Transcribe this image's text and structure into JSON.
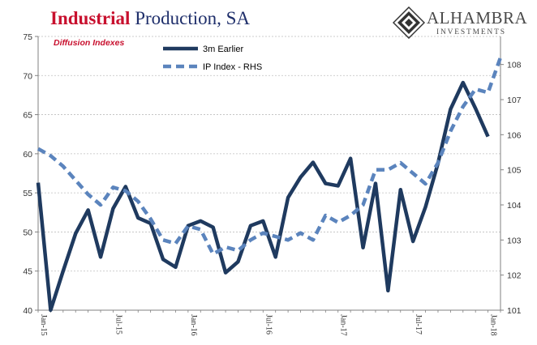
{
  "title": {
    "part1": "Industrial",
    "part2": " Production, SA"
  },
  "subtitle": "Diffusion Indexes",
  "logo": {
    "name": "ALHAMBRA",
    "sub": "INVESTMENTS",
    "icon": "alhambra-diamond-logo"
  },
  "colors": {
    "solid": "#1f3a5f",
    "dashed": "#5b84bd",
    "grid": "#bfbfbf",
    "title_red": "#c8102e",
    "title_navy": "#1f2f6b"
  },
  "chart_data": {
    "type": "line",
    "grid": true,
    "legend_placement": "top-center",
    "y_left": {
      "min": 40,
      "max": 75,
      "ticks": [
        "40",
        "45",
        "50",
        "55",
        "60",
        "65",
        "70",
        "75"
      ]
    },
    "y_right": {
      "min": 101,
      "max": 108.8,
      "ticks": [
        "101",
        "102",
        "103",
        "104",
        "105",
        "106",
        "107",
        "108"
      ]
    },
    "x_ticks": [
      {
        "label": "Jan-15",
        "index": 0
      },
      {
        "label": "Jul-15",
        "index": 6
      },
      {
        "label": "Jan-16",
        "index": 12
      },
      {
        "label": "Jul-16",
        "index": 18
      },
      {
        "label": "Jan-17",
        "index": 24
      },
      {
        "label": "Jul-17",
        "index": 30
      },
      {
        "label": "Jan-18",
        "index": 36
      }
    ],
    "series": [
      {
        "name": "3m Earlier",
        "axis": "left",
        "style": "solid",
        "values": [
          56.3,
          40.0,
          45.0,
          49.8,
          52.8,
          46.8,
          53.0,
          55.8,
          51.8,
          51.1,
          46.5,
          45.5,
          50.8,
          51.4,
          50.6,
          44.8,
          46.2,
          50.8,
          51.4,
          46.8,
          54.4,
          57.0,
          58.9,
          56.2,
          55.9,
          59.4,
          48.0,
          56.2,
          42.5,
          55.4,
          48.8,
          53.2,
          58.8,
          65.7,
          69.1,
          65.8,
          62.2
        ]
      },
      {
        "name": "IP Index - RHS",
        "axis": "right",
        "style": "dashed",
        "values": [
          105.6,
          105.4,
          105.1,
          104.7,
          104.3,
          104.0,
          104.5,
          104.4,
          104.1,
          103.6,
          103.0,
          102.9,
          103.4,
          103.3,
          102.6,
          102.8,
          102.7,
          103.0,
          103.2,
          103.1,
          103.0,
          103.2,
          103.0,
          103.7,
          103.5,
          103.7,
          104.0,
          105.0,
          105.0,
          105.2,
          104.9,
          104.6,
          105.2,
          106.1,
          106.8,
          107.3,
          107.2,
          108.2
        ]
      }
    ]
  }
}
